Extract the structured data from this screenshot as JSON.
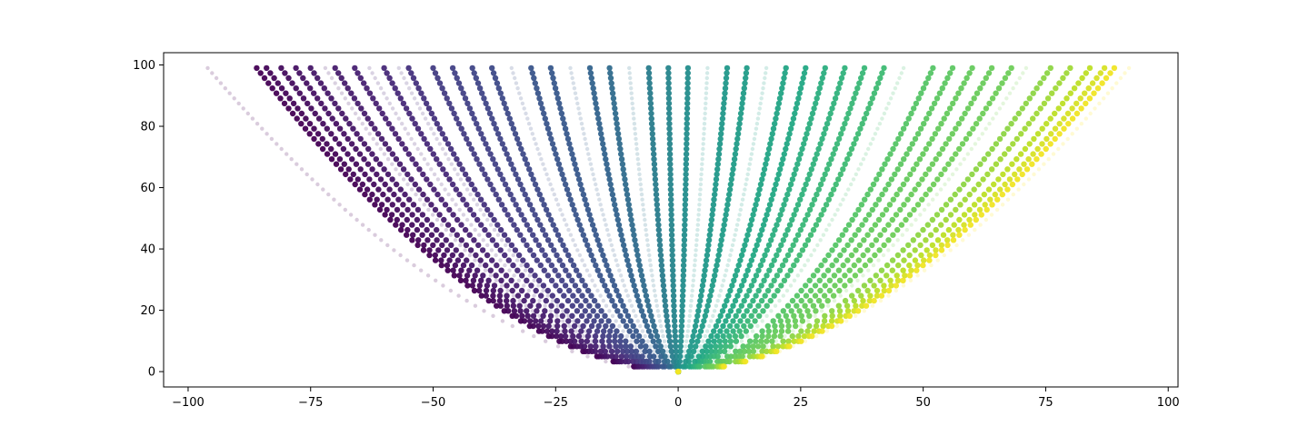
{
  "chart_data": {
    "type": "scatter",
    "title": "",
    "xlabel": "",
    "ylabel": "",
    "xlim": [
      -105,
      102
    ],
    "ylim": [
      -5,
      104
    ],
    "x_ticks": [
      -100,
      -75,
      -50,
      -25,
      0,
      25,
      50,
      75,
      100
    ],
    "x_tick_labels": [
      "−100",
      "−75",
      "−50",
      "−25",
      "0",
      "25",
      "50",
      "75",
      "100"
    ],
    "y_ticks": [
      0,
      20,
      40,
      60,
      80,
      100
    ],
    "y_tick_labels": [
      "0",
      "20",
      "40",
      "60",
      "80",
      "100"
    ],
    "grid": false,
    "legend": "none",
    "colormap": "viridis",
    "marker_alpha_faint": 0.2,
    "y_range": [
      0,
      99
    ],
    "series": [
      {
        "end_x": -96,
        "color": 0.0,
        "faint": true
      },
      {
        "end_x": -86,
        "color": 0.0,
        "faint": false
      },
      {
        "end_x": -84,
        "color": 0.02,
        "faint": false
      },
      {
        "end_x": -81,
        "color": 0.04,
        "faint": false
      },
      {
        "end_x": -78,
        "color": 0.06,
        "faint": false
      },
      {
        "end_x": -75,
        "color": 0.08,
        "faint": false
      },
      {
        "end_x": -72,
        "color": 0.08,
        "faint": true
      },
      {
        "end_x": -70,
        "color": 0.1,
        "faint": false
      },
      {
        "end_x": -66,
        "color": 0.12,
        "faint": false
      },
      {
        "end_x": -63,
        "color": 0.12,
        "faint": true
      },
      {
        "end_x": -60,
        "color": 0.15,
        "faint": false
      },
      {
        "end_x": -57,
        "color": 0.16,
        "faint": true
      },
      {
        "end_x": -55,
        "color": 0.18,
        "faint": false
      },
      {
        "end_x": -50,
        "color": 0.22,
        "faint": false
      },
      {
        "end_x": -46,
        "color": 0.24,
        "faint": false
      },
      {
        "end_x": -42,
        "color": 0.26,
        "faint": false
      },
      {
        "end_x": -38,
        "color": 0.28,
        "faint": false
      },
      {
        "end_x": -34,
        "color": 0.3,
        "faint": true
      },
      {
        "end_x": -30,
        "color": 0.33,
        "faint": false
      },
      {
        "end_x": -26,
        "color": 0.35,
        "faint": false
      },
      {
        "end_x": -22,
        "color": 0.37,
        "faint": true
      },
      {
        "end_x": -18,
        "color": 0.39,
        "faint": false
      },
      {
        "end_x": -14,
        "color": 0.41,
        "faint": false
      },
      {
        "end_x": -10,
        "color": 0.43,
        "faint": true
      },
      {
        "end_x": -6,
        "color": 0.45,
        "faint": false
      },
      {
        "end_x": -2,
        "color": 0.47,
        "faint": false
      },
      {
        "end_x": 2,
        "color": 0.49,
        "faint": false
      },
      {
        "end_x": 6,
        "color": 0.52,
        "faint": true
      },
      {
        "end_x": 10,
        "color": 0.54,
        "faint": false
      },
      {
        "end_x": 14,
        "color": 0.56,
        "faint": false
      },
      {
        "end_x": 18,
        "color": 0.58,
        "faint": true
      },
      {
        "end_x": 22,
        "color": 0.61,
        "faint": false
      },
      {
        "end_x": 26,
        "color": 0.63,
        "faint": false
      },
      {
        "end_x": 30,
        "color": 0.66,
        "faint": false
      },
      {
        "end_x": 34,
        "color": 0.68,
        "faint": false
      },
      {
        "end_x": 38,
        "color": 0.71,
        "faint": false
      },
      {
        "end_x": 42,
        "color": 0.73,
        "faint": false
      },
      {
        "end_x": 46,
        "color": 0.75,
        "faint": true
      },
      {
        "end_x": 52,
        "color": 0.79,
        "faint": false
      },
      {
        "end_x": 56,
        "color": 0.81,
        "faint": false
      },
      {
        "end_x": 60,
        "color": 0.83,
        "faint": false
      },
      {
        "end_x": 64,
        "color": 0.84,
        "faint": false
      },
      {
        "end_x": 68,
        "color": 0.85,
        "faint": false
      },
      {
        "end_x": 71,
        "color": 0.87,
        "faint": true
      },
      {
        "end_x": 76,
        "color": 0.9,
        "faint": false
      },
      {
        "end_x": 80,
        "color": 0.92,
        "faint": false
      },
      {
        "end_x": 84,
        "color": 0.95,
        "faint": false
      },
      {
        "end_x": 87,
        "color": 0.97,
        "faint": false
      },
      {
        "end_x": 89,
        "color": 0.99,
        "faint": false
      },
      {
        "end_x": 92,
        "color": 1.0,
        "faint": true
      }
    ]
  }
}
